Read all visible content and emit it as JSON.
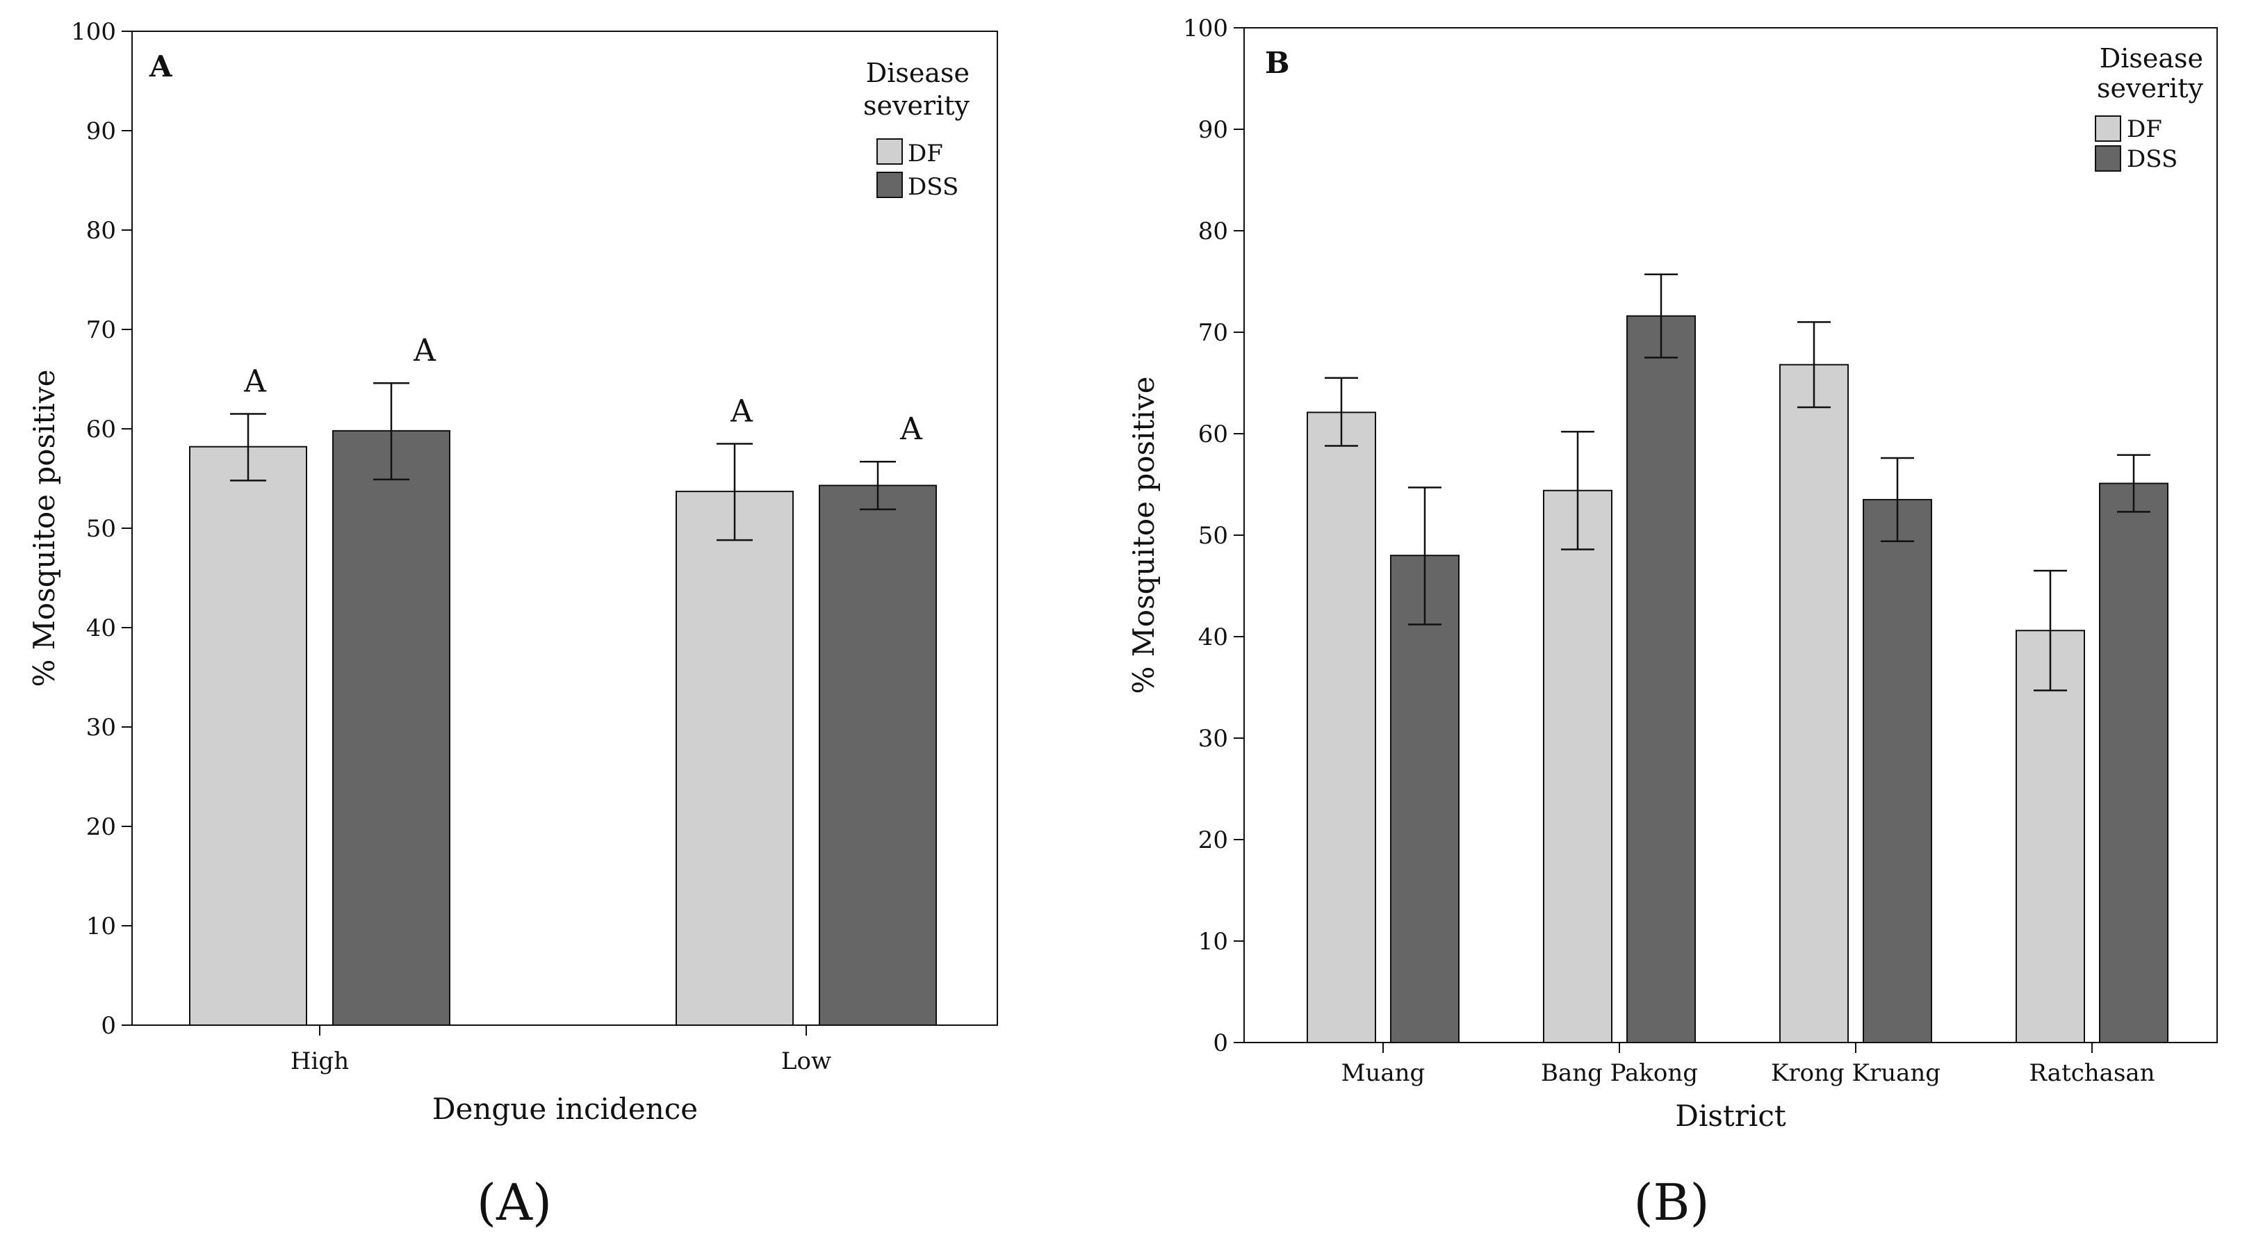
{
  "captions": [
    "(A)",
    "(B)"
  ],
  "colors": {
    "DF": "#d0d0d0",
    "DSS": "#666666",
    "axis": "#111111",
    "bar_stroke": "#111111"
  },
  "chart_data": [
    {
      "type": "bar",
      "panel": "A",
      "xlabel": "Dengue incidence",
      "ylabel": "% Mosquitoe positive",
      "ylim": [
        0,
        100
      ],
      "yticks": [
        0,
        10,
        20,
        30,
        40,
        50,
        60,
        70,
        80,
        90,
        100
      ],
      "categories": [
        "High",
        "Low"
      ],
      "legend": {
        "title_lines": [
          "Disease",
          "severity"
        ],
        "placement": "top-right"
      },
      "series": [
        {
          "name": "DF",
          "values": [
            58.2,
            53.7
          ],
          "err_low": [
            54.8,
            48.8
          ],
          "err_high": [
            61.5,
            58.5
          ],
          "labels": [
            "A",
            "A"
          ]
        },
        {
          "name": "DSS",
          "values": [
            59.8,
            54.3
          ],
          "err_low": [
            54.9,
            51.9
          ],
          "err_high": [
            64.6,
            56.7
          ],
          "labels": [
            "A",
            "A"
          ]
        }
      ]
    },
    {
      "type": "bar",
      "panel": "B",
      "xlabel": "District",
      "ylabel": "% Mosquitoe positive",
      "ylim": [
        0,
        100
      ],
      "yticks": [
        0,
        10,
        20,
        30,
        40,
        50,
        60,
        70,
        80,
        90,
        100
      ],
      "categories": [
        "Muang",
        "Bang Pakong",
        "Krong Kruang",
        "Ratchasan"
      ],
      "legend": {
        "title_lines": [
          "Disease",
          "severity"
        ],
        "placement": "top-right"
      },
      "series": [
        {
          "name": "DF",
          "values": [
            62.1,
            54.4,
            66.8,
            40.6
          ],
          "err_low": [
            58.8,
            48.6,
            62.6,
            34.7
          ],
          "err_high": [
            65.5,
            60.2,
            71.0,
            46.5
          ]
        },
        {
          "name": "DSS",
          "values": [
            48.0,
            71.6,
            53.5,
            55.1
          ],
          "err_low": [
            41.2,
            67.5,
            49.4,
            52.3
          ],
          "err_high": [
            54.7,
            75.7,
            57.6,
            57.9
          ]
        }
      ]
    }
  ]
}
